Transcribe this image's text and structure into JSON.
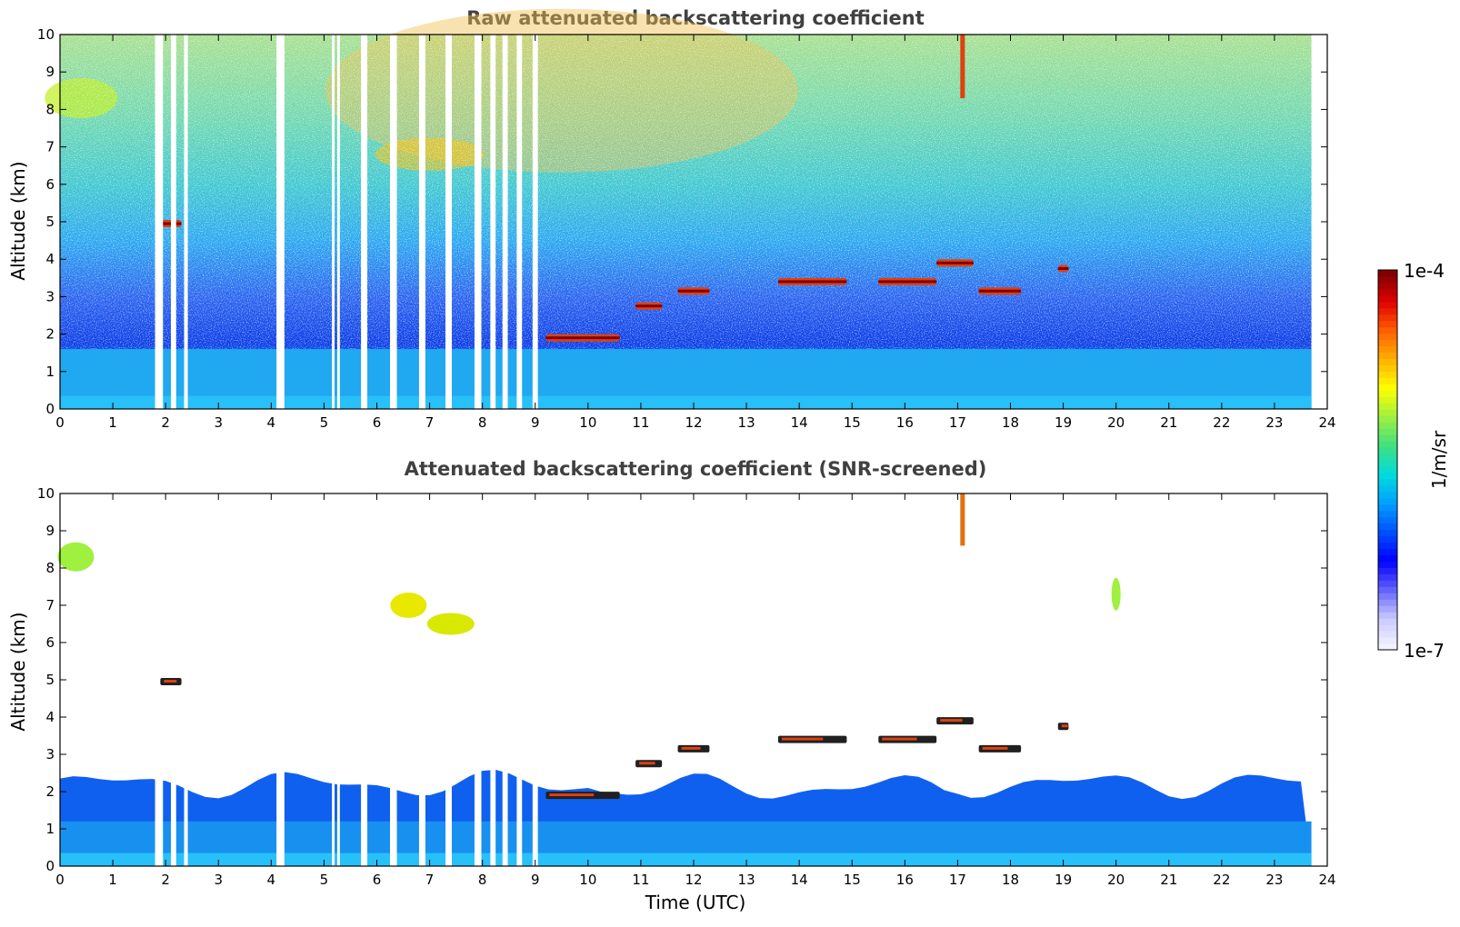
{
  "chart_data": [
    {
      "type": "heatmap",
      "title": "Raw attenuated backscattering coefficient",
      "xlabel": "",
      "ylabel": "Altitude (km)",
      "xlim": [
        0,
        24
      ],
      "ylim": [
        0,
        10
      ],
      "xticks": [
        "0",
        "1",
        "2",
        "3",
        "4",
        "5",
        "6",
        "7",
        "8",
        "9",
        "10",
        "11",
        "12",
        "13",
        "14",
        "15",
        "16",
        "17",
        "18",
        "19",
        "20",
        "21",
        "22",
        "23",
        "24"
      ],
      "yticks": [
        "0",
        "1",
        "2",
        "3",
        "4",
        "5",
        "6",
        "7",
        "8",
        "9",
        "10"
      ],
      "data_end_hour": 23.7,
      "data_gaps_hours": [
        [
          1.8,
          1.95
        ],
        [
          2.1,
          2.2
        ],
        [
          2.35,
          2.42
        ],
        [
          4.1,
          4.25
        ],
        [
          5.15,
          5.2
        ],
        [
          5.25,
          5.3
        ],
        [
          5.7,
          5.82
        ],
        [
          6.25,
          6.38
        ],
        [
          6.8,
          6.92
        ],
        [
          7.3,
          7.42
        ],
        [
          7.85,
          7.98
        ],
        [
          8.15,
          8.25
        ],
        [
          8.38,
          8.48
        ],
        [
          8.65,
          8.75
        ],
        [
          8.95,
          9.05
        ]
      ],
      "cloud_layers": [
        {
          "t_start": 1.9,
          "t_end": 2.3,
          "altitude_km": 4.95
        },
        {
          "t_start": 9.2,
          "t_end": 10.6,
          "altitude_km": 1.9
        },
        {
          "t_start": 10.9,
          "t_end": 11.4,
          "altitude_km": 2.75
        },
        {
          "t_start": 11.7,
          "t_end": 12.3,
          "altitude_km": 3.15
        },
        {
          "t_start": 13.6,
          "t_end": 14.9,
          "altitude_km": 3.4
        },
        {
          "t_start": 15.5,
          "t_end": 16.6,
          "altitude_km": 3.4
        },
        {
          "t_start": 16.6,
          "t_end": 17.3,
          "altitude_km": 3.9
        },
        {
          "t_start": 17.4,
          "t_end": 18.2,
          "altitude_km": 3.15
        },
        {
          "t_start": 18.9,
          "t_end": 19.1,
          "altitude_km": 3.75
        }
      ],
      "boundary_layer_top_km": 1.6
    },
    {
      "type": "heatmap",
      "title": "Attenuated backscattering coefficient (SNR-screened)",
      "xlabel": "Time (UTC)",
      "ylabel": "Altitude (km)",
      "xlim": [
        0,
        24
      ],
      "ylim": [
        0,
        10
      ],
      "xticks": [
        "0",
        "1",
        "2",
        "3",
        "4",
        "5",
        "6",
        "7",
        "8",
        "9",
        "10",
        "11",
        "12",
        "13",
        "14",
        "15",
        "16",
        "17",
        "18",
        "19",
        "20",
        "21",
        "22",
        "23",
        "24"
      ],
      "yticks": [
        "0",
        "1",
        "2",
        "3",
        "4",
        "5",
        "6",
        "7",
        "8",
        "9",
        "10"
      ],
      "data_end_hour": 23.7,
      "boundary_layer_top_km": 2.2
    }
  ],
  "colorbar": {
    "label": "1/m/sr",
    "max_label": "1e-4",
    "min_label": "1e-7",
    "scale": "log",
    "colormap": [
      "#f2f2ff",
      "#c8c8ff",
      "#6060ff",
      "#0000ff",
      "#0050ff",
      "#00a0ff",
      "#00dcdc",
      "#40e080",
      "#a0f040",
      "#ffff00",
      "#ffb000",
      "#ff6000",
      "#e00000",
      "#800000"
    ]
  }
}
